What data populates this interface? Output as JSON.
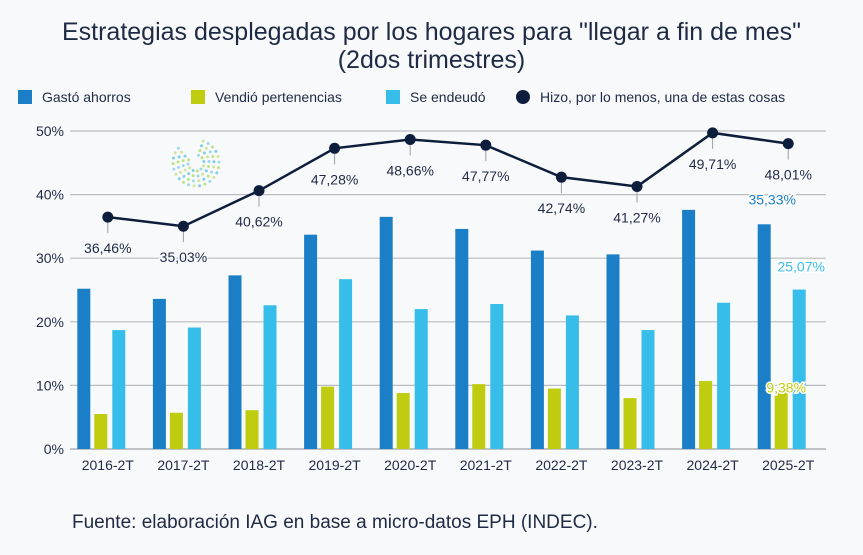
{
  "title_line1": "Estrategias desplegadas por los hogares para \"llegar a fin de mes\"",
  "title_line2": "(2dos trimestres)",
  "source": "Fuente: elaboración IAG en base a micro-datos EPH (INDEC).",
  "chart_data": {
    "type": "bar",
    "categories": [
      "2016-2T",
      "2017-2T",
      "2018-2T",
      "2019-2T",
      "2020-2T",
      "2021-2T",
      "2022-2T",
      "2023-2T",
      "2024-2T",
      "2025-2T"
    ],
    "ylim": [
      0,
      50
    ],
    "yticks": [
      "0%",
      "10%",
      "20%",
      "30%",
      "40%",
      "50%"
    ],
    "grid": true,
    "legend_position": "top",
    "series": [
      {
        "name": "Gastó ahorros",
        "type": "bar",
        "color": "#1a7fc6",
        "values": [
          25.2,
          23.6,
          27.3,
          33.7,
          36.5,
          34.6,
          31.2,
          30.6,
          37.6,
          35.33
        ],
        "data_labels": [
          "",
          "",
          "",
          "",
          "",
          "",
          "",
          "",
          "",
          "35,33%"
        ]
      },
      {
        "name": "Vendió pertenencias",
        "type": "bar",
        "color": "#bfcc0f",
        "values": [
          5.5,
          5.7,
          6.1,
          9.8,
          8.8,
          10.2,
          9.5,
          8.0,
          10.7,
          9.38
        ],
        "data_labels": [
          "",
          "",
          "",
          "",
          "",
          "",
          "",
          "",
          "",
          "9,38%"
        ]
      },
      {
        "name": "Se endeudó",
        "type": "bar",
        "color": "#36bde9",
        "values": [
          18.7,
          19.1,
          22.6,
          26.7,
          22.0,
          22.8,
          21.0,
          18.7,
          23.0,
          25.07
        ],
        "data_labels": [
          "",
          "",
          "",
          "",
          "",
          "",
          "",
          "",
          "",
          "25,07%"
        ]
      },
      {
        "name": "Hizo, por lo menos, una de estas cosas",
        "type": "line",
        "color": "#0d1e3c",
        "values": [
          36.46,
          35.03,
          40.62,
          47.28,
          48.66,
          47.77,
          42.74,
          41.27,
          49.71,
          48.01
        ],
        "data_labels": [
          "36,46%",
          "35,03%",
          "40,62%",
          "47,28%",
          "48,66%",
          "47,77%",
          "42,74%",
          "41,27%",
          "49,71%",
          "48,01%"
        ]
      }
    ]
  }
}
